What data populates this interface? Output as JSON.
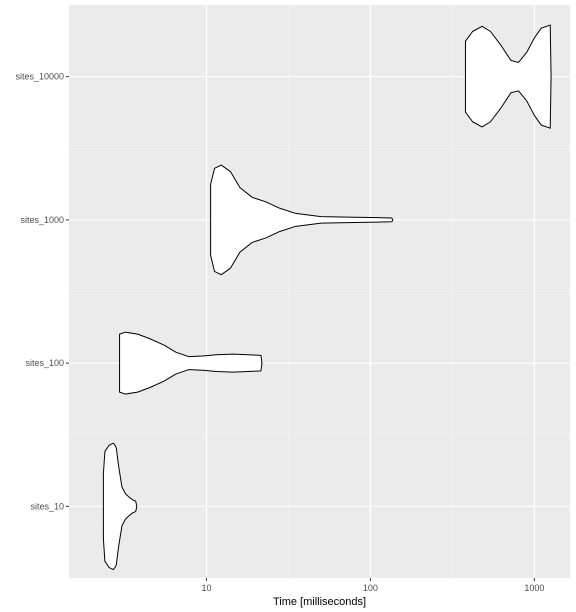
{
  "chart_data": {
    "type": "violin",
    "xlabel": "Time [milliseconds]",
    "ylabel": "",
    "x_scale": "log10",
    "xlim": [
      1.45,
      1650
    ],
    "x_ticks": [
      {
        "value": 10,
        "label": "10"
      },
      {
        "value": 100,
        "label": "100"
      },
      {
        "value": 1000,
        "label": "1000"
      }
    ],
    "categories": [
      "sites_10",
      "sites_100",
      "sites_1000",
      "sites_10000"
    ],
    "grid": true,
    "colors": {
      "panel_background": "#ebebeb",
      "grid_major": "#ffffff",
      "grid_minor": "#f5f5f5",
      "violin_fill": "#ffffff",
      "violin_stroke": "#000000"
    },
    "violins": [
      {
        "category": "sites_10",
        "profile": [
          [
            2.35,
            0.0
          ],
          [
            2.35,
            0.5
          ],
          [
            2.4,
            0.85
          ],
          [
            2.55,
            0.95
          ],
          [
            2.7,
            0.98
          ],
          [
            2.78,
            0.94
          ],
          [
            2.82,
            0.9
          ],
          [
            2.9,
            0.65
          ],
          [
            3.05,
            0.3
          ],
          [
            3.2,
            0.2
          ],
          [
            3.35,
            0.15
          ],
          [
            3.55,
            0.1
          ],
          [
            3.7,
            0.08
          ],
          [
            3.76,
            0.0
          ]
        ]
      },
      {
        "category": "sites_100",
        "profile": [
          [
            2.95,
            0.0
          ],
          [
            2.95,
            0.45
          ],
          [
            3.2,
            0.48
          ],
          [
            3.8,
            0.45
          ],
          [
            4.5,
            0.38
          ],
          [
            5.5,
            0.28
          ],
          [
            6.5,
            0.17
          ],
          [
            7.8,
            0.1
          ],
          [
            9.5,
            0.11
          ],
          [
            11.5,
            0.13
          ],
          [
            14.5,
            0.14
          ],
          [
            18.0,
            0.13
          ],
          [
            21.5,
            0.12
          ],
          [
            21.8,
            0.0
          ]
        ]
      },
      {
        "category": "sites_1000",
        "profile": [
          [
            10.6,
            0.0
          ],
          [
            10.6,
            0.55
          ],
          [
            11.2,
            0.8
          ],
          [
            12.3,
            0.85
          ],
          [
            14.0,
            0.75
          ],
          [
            16.0,
            0.5
          ],
          [
            19.0,
            0.35
          ],
          [
            23.0,
            0.28
          ],
          [
            28.0,
            0.18
          ],
          [
            35.0,
            0.1
          ],
          [
            50.0,
            0.05
          ],
          [
            80.0,
            0.04
          ],
          [
            110.0,
            0.035
          ],
          [
            135.0,
            0.03
          ],
          [
            137.0,
            0.0
          ]
        ]
      },
      {
        "category": "sites_10000",
        "profile": [
          [
            380,
            0.0
          ],
          [
            380,
            0.55
          ],
          [
            420,
            0.7
          ],
          [
            480,
            0.78
          ],
          [
            540,
            0.7
          ],
          [
            620,
            0.5
          ],
          [
            720,
            0.25
          ],
          [
            800,
            0.22
          ],
          [
            900,
            0.38
          ],
          [
            1000,
            0.6
          ],
          [
            1100,
            0.75
          ],
          [
            1250,
            0.8
          ],
          [
            1265,
            0.0
          ]
        ]
      }
    ]
  }
}
